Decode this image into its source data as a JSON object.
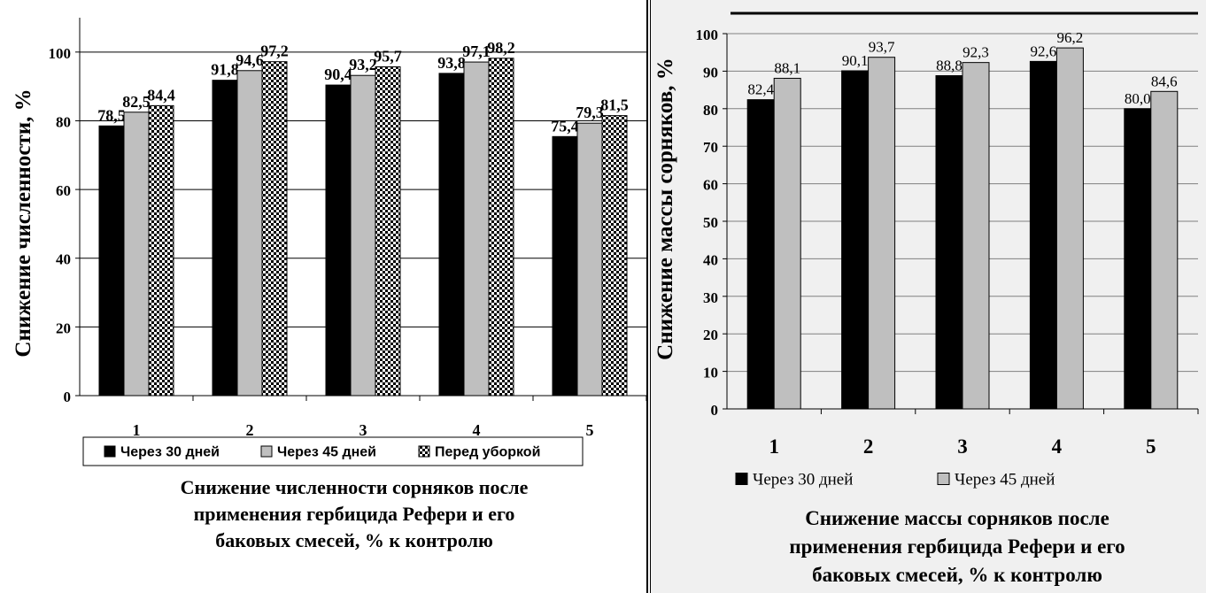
{
  "chart_data": [
    {
      "type": "bar",
      "ylabel": "Снижение численности, %",
      "categories": [
        "1",
        "2",
        "3",
        "4",
        "5"
      ],
      "ylim": [
        0,
        110
      ],
      "yticks": [
        0,
        20,
        40,
        60,
        80,
        100
      ],
      "grid": true,
      "legend_position": "bottom",
      "series": [
        {
          "name": "Через 30 дней",
          "values": [
            78.5,
            91.8,
            90.4,
            93.8,
            75.4
          ],
          "labels": [
            "78,5",
            "91,8",
            "90,4",
            "93,8",
            "75,4"
          ],
          "fill": "#000000",
          "pattern": "solid"
        },
        {
          "name": "Через 45 дней",
          "values": [
            82.5,
            94.6,
            93.2,
            97.1,
            79.3
          ],
          "labels": [
            "82,5",
            "94,6",
            "93,2",
            "97,1",
            "79,3"
          ],
          "fill": "#bfbfbf",
          "pattern": "solid"
        },
        {
          "name": "Перед уборкой",
          "values": [
            84.4,
            97.2,
            95.7,
            98.2,
            81.5
          ],
          "labels": [
            "84,4",
            "97,2",
            "95,7",
            "98,2",
            "81,5"
          ],
          "fill": "#000000",
          "pattern": "checker"
        }
      ],
      "caption": [
        "Снижение численности сорняков после",
        "применения гербицида Рефери и его",
        "баковых смесей, % к контролю"
      ]
    },
    {
      "type": "bar",
      "ylabel": "Снижение массы сорняков, %",
      "categories": [
        "1",
        "2",
        "3",
        "4",
        "5"
      ],
      "ylim": [
        0,
        100
      ],
      "yticks": [
        0,
        10,
        20,
        30,
        40,
        50,
        60,
        70,
        80,
        90,
        100
      ],
      "grid": true,
      "legend_position": "bottom",
      "series": [
        {
          "name": "Через 30 дней",
          "values": [
            82.4,
            90.1,
            88.8,
            92.6,
            80.0
          ],
          "labels": [
            "82,4",
            "90,1",
            "88,8",
            "92,6",
            "80,0"
          ],
          "fill": "#000000",
          "pattern": "solid"
        },
        {
          "name": "Через 45 дней",
          "values": [
            88.1,
            93.7,
            92.3,
            96.2,
            84.6
          ],
          "labels": [
            "88,1",
            "93,7",
            "92,3",
            "96,2",
            "84,6"
          ],
          "fill": "#bfbfbf",
          "pattern": "solid"
        }
      ],
      "caption": [
        "Снижение массы сорняков после",
        "применения гербицида Рефери и его",
        "баковых смесей, % к контролю"
      ]
    }
  ]
}
